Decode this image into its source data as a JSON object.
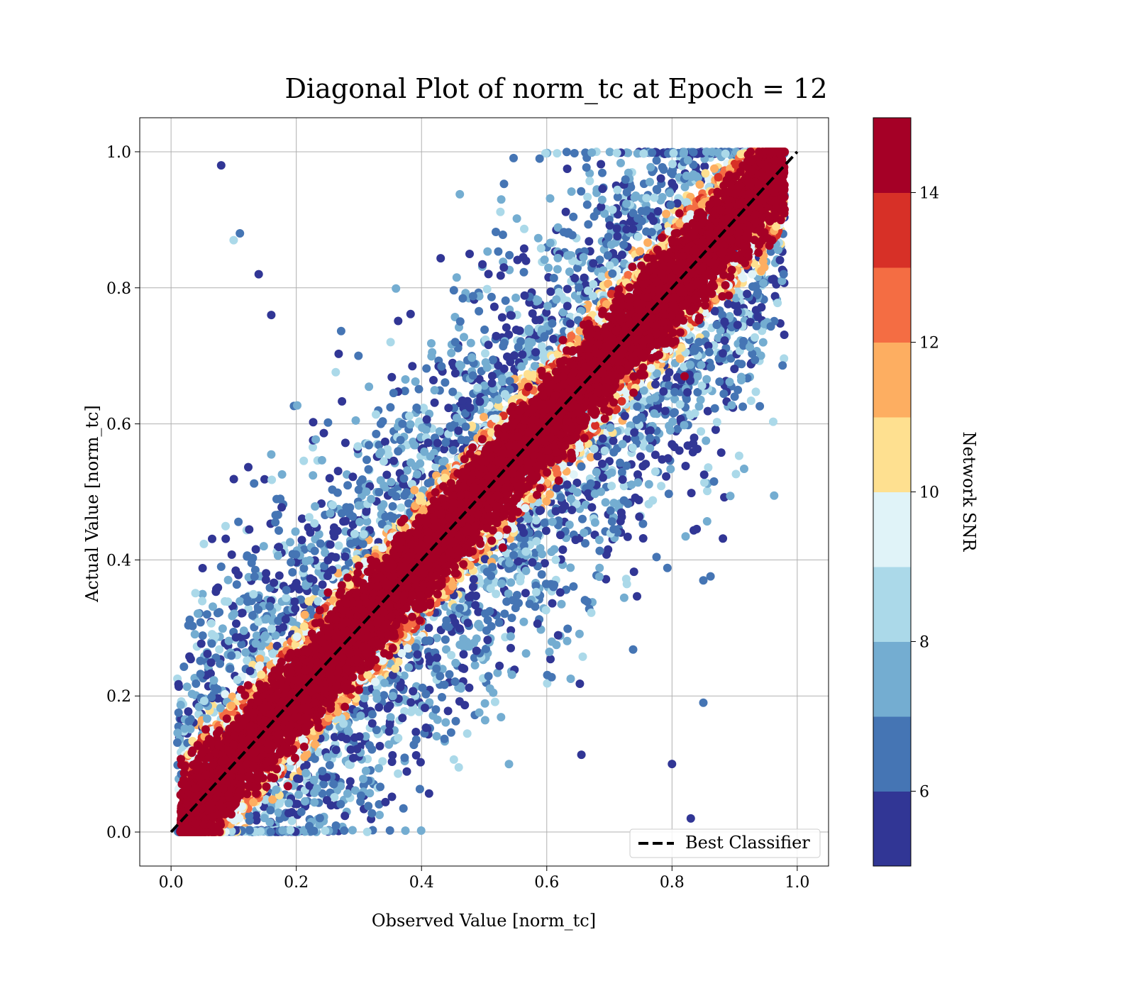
{
  "chart_data": {
    "type": "scatter",
    "title": "Diagonal Plot of norm_tc at Epoch = 12",
    "xlabel": "Observed Value [norm_tc]",
    "ylabel": "Actual Value [norm_tc]",
    "xlim": [
      -0.05,
      1.05
    ],
    "ylim": [
      -0.05,
      1.05
    ],
    "xticks": [
      "0.0",
      "0.2",
      "0.4",
      "0.6",
      "0.8",
      "1.0"
    ],
    "yticks": [
      "0.0",
      "0.2",
      "0.4",
      "0.6",
      "0.8",
      "1.0"
    ],
    "grid": true,
    "legend": {
      "placement": "lower-right",
      "entries": [
        {
          "label": "Best Classifier",
          "style": "dashed",
          "color": "#000000"
        }
      ]
    },
    "reference_line": {
      "label": "Best Classifier",
      "x": [
        0.0,
        1.0
      ],
      "y": [
        0.0,
        1.0
      ]
    },
    "colorbar": {
      "label": "Network SNR",
      "range": [
        5,
        15
      ],
      "ticks": [
        "6",
        "8",
        "10",
        "12",
        "14"
      ],
      "colors": [
        "#313695",
        "#4575b4",
        "#74add1",
        "#abd9e9",
        "#e0f3f8",
        "#fee090",
        "#fdae61",
        "#f46d43",
        "#d73027",
        "#a50026"
      ]
    },
    "scatter_description": {
      "distribution": "dense band along diagonal y = x, high SNR (~15) concentrated near diagonal, low SNR (5-9) scattered farther off diagonal, values clipped to [0, 1]",
      "sample_points": [
        {
          "x": 0.08,
          "y": 0.98,
          "snr": 5.2
        },
        {
          "x": 0.1,
          "y": 0.87,
          "snr": 8.5
        },
        {
          "x": 0.11,
          "y": 0.88,
          "snr": 6.5
        },
        {
          "x": 0.14,
          "y": 0.82,
          "snr": 5.3
        },
        {
          "x": 0.16,
          "y": 0.76,
          "snr": 5.5
        },
        {
          "x": 0.9,
          "y": 0.64,
          "snr": 6.8
        },
        {
          "x": 0.85,
          "y": 0.37,
          "snr": 6.9
        },
        {
          "x": 0.85,
          "y": 0.19,
          "snr": 6.8
        },
        {
          "x": 0.83,
          "y": 0.02,
          "snr": 5.3
        },
        {
          "x": 0.8,
          "y": 0.1,
          "snr": 5.4
        },
        {
          "x": 0.8,
          "y": 0.57,
          "snr": 5.5
        },
        {
          "x": 0.08,
          "y": 0.39,
          "snr": 6.8
        },
        {
          "x": 0.82,
          "y": 0.67,
          "snr": 14.8
        }
      ]
    }
  }
}
